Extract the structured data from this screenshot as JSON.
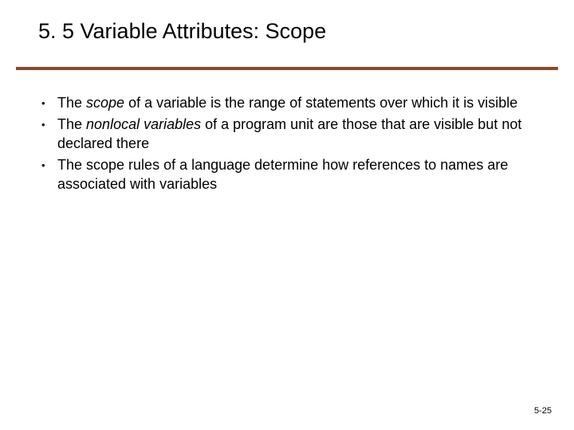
{
  "slide": {
    "title": "5. 5 Variable Attributes: Scope",
    "rule_color": "#8b4a2b",
    "background_color": "#ffffff",
    "title_fontsize": 27,
    "body_fontsize": 18,
    "bullets": [
      {
        "parts": [
          {
            "text": "The ",
            "italic": false
          },
          {
            "text": "scope",
            "italic": true
          },
          {
            "text": " of a variable is the range of statements over which it is visible",
            "italic": false
          }
        ]
      },
      {
        "parts": [
          {
            "text": "The ",
            "italic": false
          },
          {
            "text": "nonlocal variables",
            "italic": true
          },
          {
            "text": " of a program unit are those that are visible but not declared there",
            "italic": false
          }
        ]
      },
      {
        "parts": [
          {
            "text": "The scope rules of a language determine how references to names are associated with variables",
            "italic": false
          }
        ]
      }
    ],
    "footer": "5-25"
  }
}
